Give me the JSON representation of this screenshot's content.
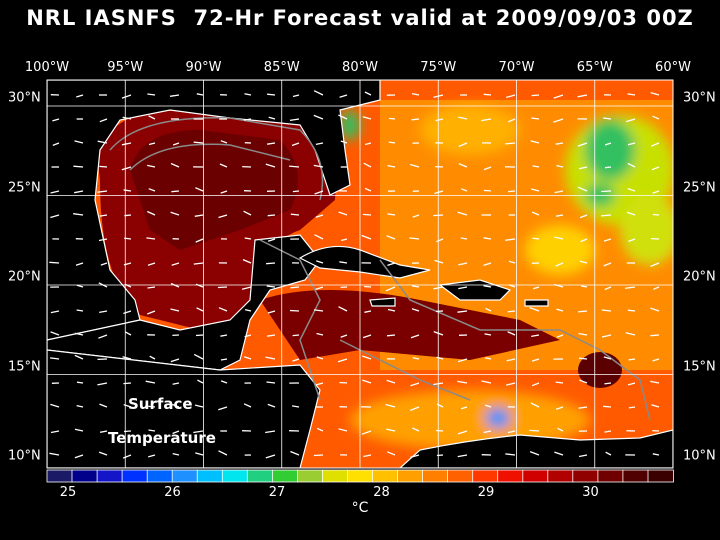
{
  "title": "NRL IASNFS  72-Hr Forecast valid at 2009/09/03 00Z",
  "lon_labels": [
    "100°W",
    "95°W",
    "90°W",
    "85°W",
    "80°W",
    "75°W",
    "70°W",
    "65°W",
    "60°W"
  ],
  "lat_labels": [
    "30°N",
    "25°N",
    "20°N",
    "15°N",
    "10°N"
  ],
  "overlay_label": {
    "line1": "Surface",
    "line2": "Temperature"
  },
  "colorbar": {
    "ticks": [
      "25",
      "26",
      "27",
      "28",
      "29",
      "30"
    ],
    "unit": "°C",
    "colors": [
      "#1a1a66",
      "#00008b",
      "#1414c8",
      "#0032ff",
      "#0064ff",
      "#1e90ff",
      "#00bfff",
      "#00e5ee",
      "#20d080",
      "#32cd32",
      "#9acd32",
      "#e0e000",
      "#ffe000",
      "#ffc000",
      "#ffa000",
      "#ff8000",
      "#ff6000",
      "#ff3800",
      "#f01000",
      "#d00000",
      "#b00000",
      "#900000",
      "#700000",
      "#500000",
      "#3a0000"
    ]
  },
  "colors": {
    "land": "#000000",
    "gulf": "#8b0000",
    "caribbean": "#ff3a00",
    "atlantic": "#ff8c00",
    "cool": "#c8e000",
    "coast": "#ffffff",
    "contour": "#8a8a8a"
  }
}
